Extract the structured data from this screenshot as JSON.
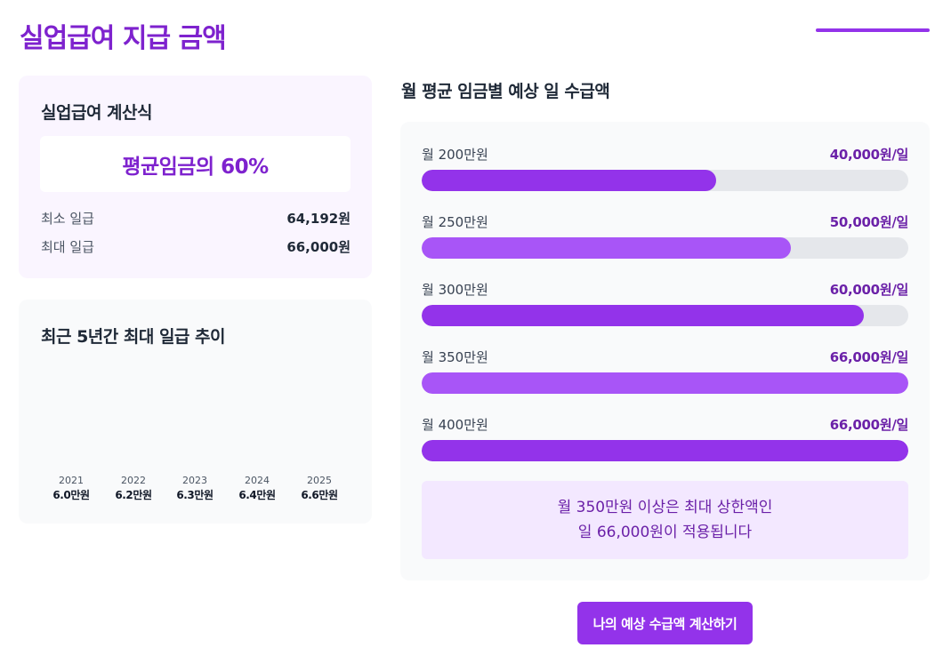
{
  "page": {
    "title": "실업급여 지급 금액"
  },
  "formula": {
    "title": "실업급여 계산식",
    "expression": "평균임금의 60%",
    "min_label": "최소 일급",
    "min_value": "64,192원",
    "max_label": "최대 일급",
    "max_value": "66,000원"
  },
  "trend": {
    "title": "최근 5년간 최대 일급 추이",
    "items": [
      {
        "year": "2021",
        "value": "6.0만원"
      },
      {
        "year": "2022",
        "value": "6.2만원"
      },
      {
        "year": "2023",
        "value": "6.3만원"
      },
      {
        "year": "2024",
        "value": "6.4만원"
      },
      {
        "year": "2025",
        "value": "6.6만원"
      }
    ]
  },
  "bars": {
    "title": "월 평균 임금별 예상 일 수급액",
    "colors": {
      "dark": "#9333ea",
      "light": "#a855f7",
      "track": "#e5e7eb"
    },
    "items": [
      {
        "label": "월 200만원",
        "amount": "40,000원/일",
        "fill": 0.606,
        "color": "#9333ea"
      },
      {
        "label": "월 250만원",
        "amount": "50,000원/일",
        "fill": 0.758,
        "color": "#a855f7"
      },
      {
        "label": "월 300만원",
        "amount": "60,000원/일",
        "fill": 0.909,
        "color": "#9333ea"
      },
      {
        "label": "월 350만원",
        "amount": "66,000원/일",
        "fill": 1.0,
        "color": "#a855f7"
      },
      {
        "label": "월 400만원",
        "amount": "66,000원/일",
        "fill": 1.0,
        "color": "#9333ea"
      }
    ],
    "note_line1": "월 350만원 이상은 최대 상한액인",
    "note_line2": "일 66,000원이 적용됩니다"
  },
  "cta": {
    "label": "나의 예상 수급액 계산하기"
  }
}
